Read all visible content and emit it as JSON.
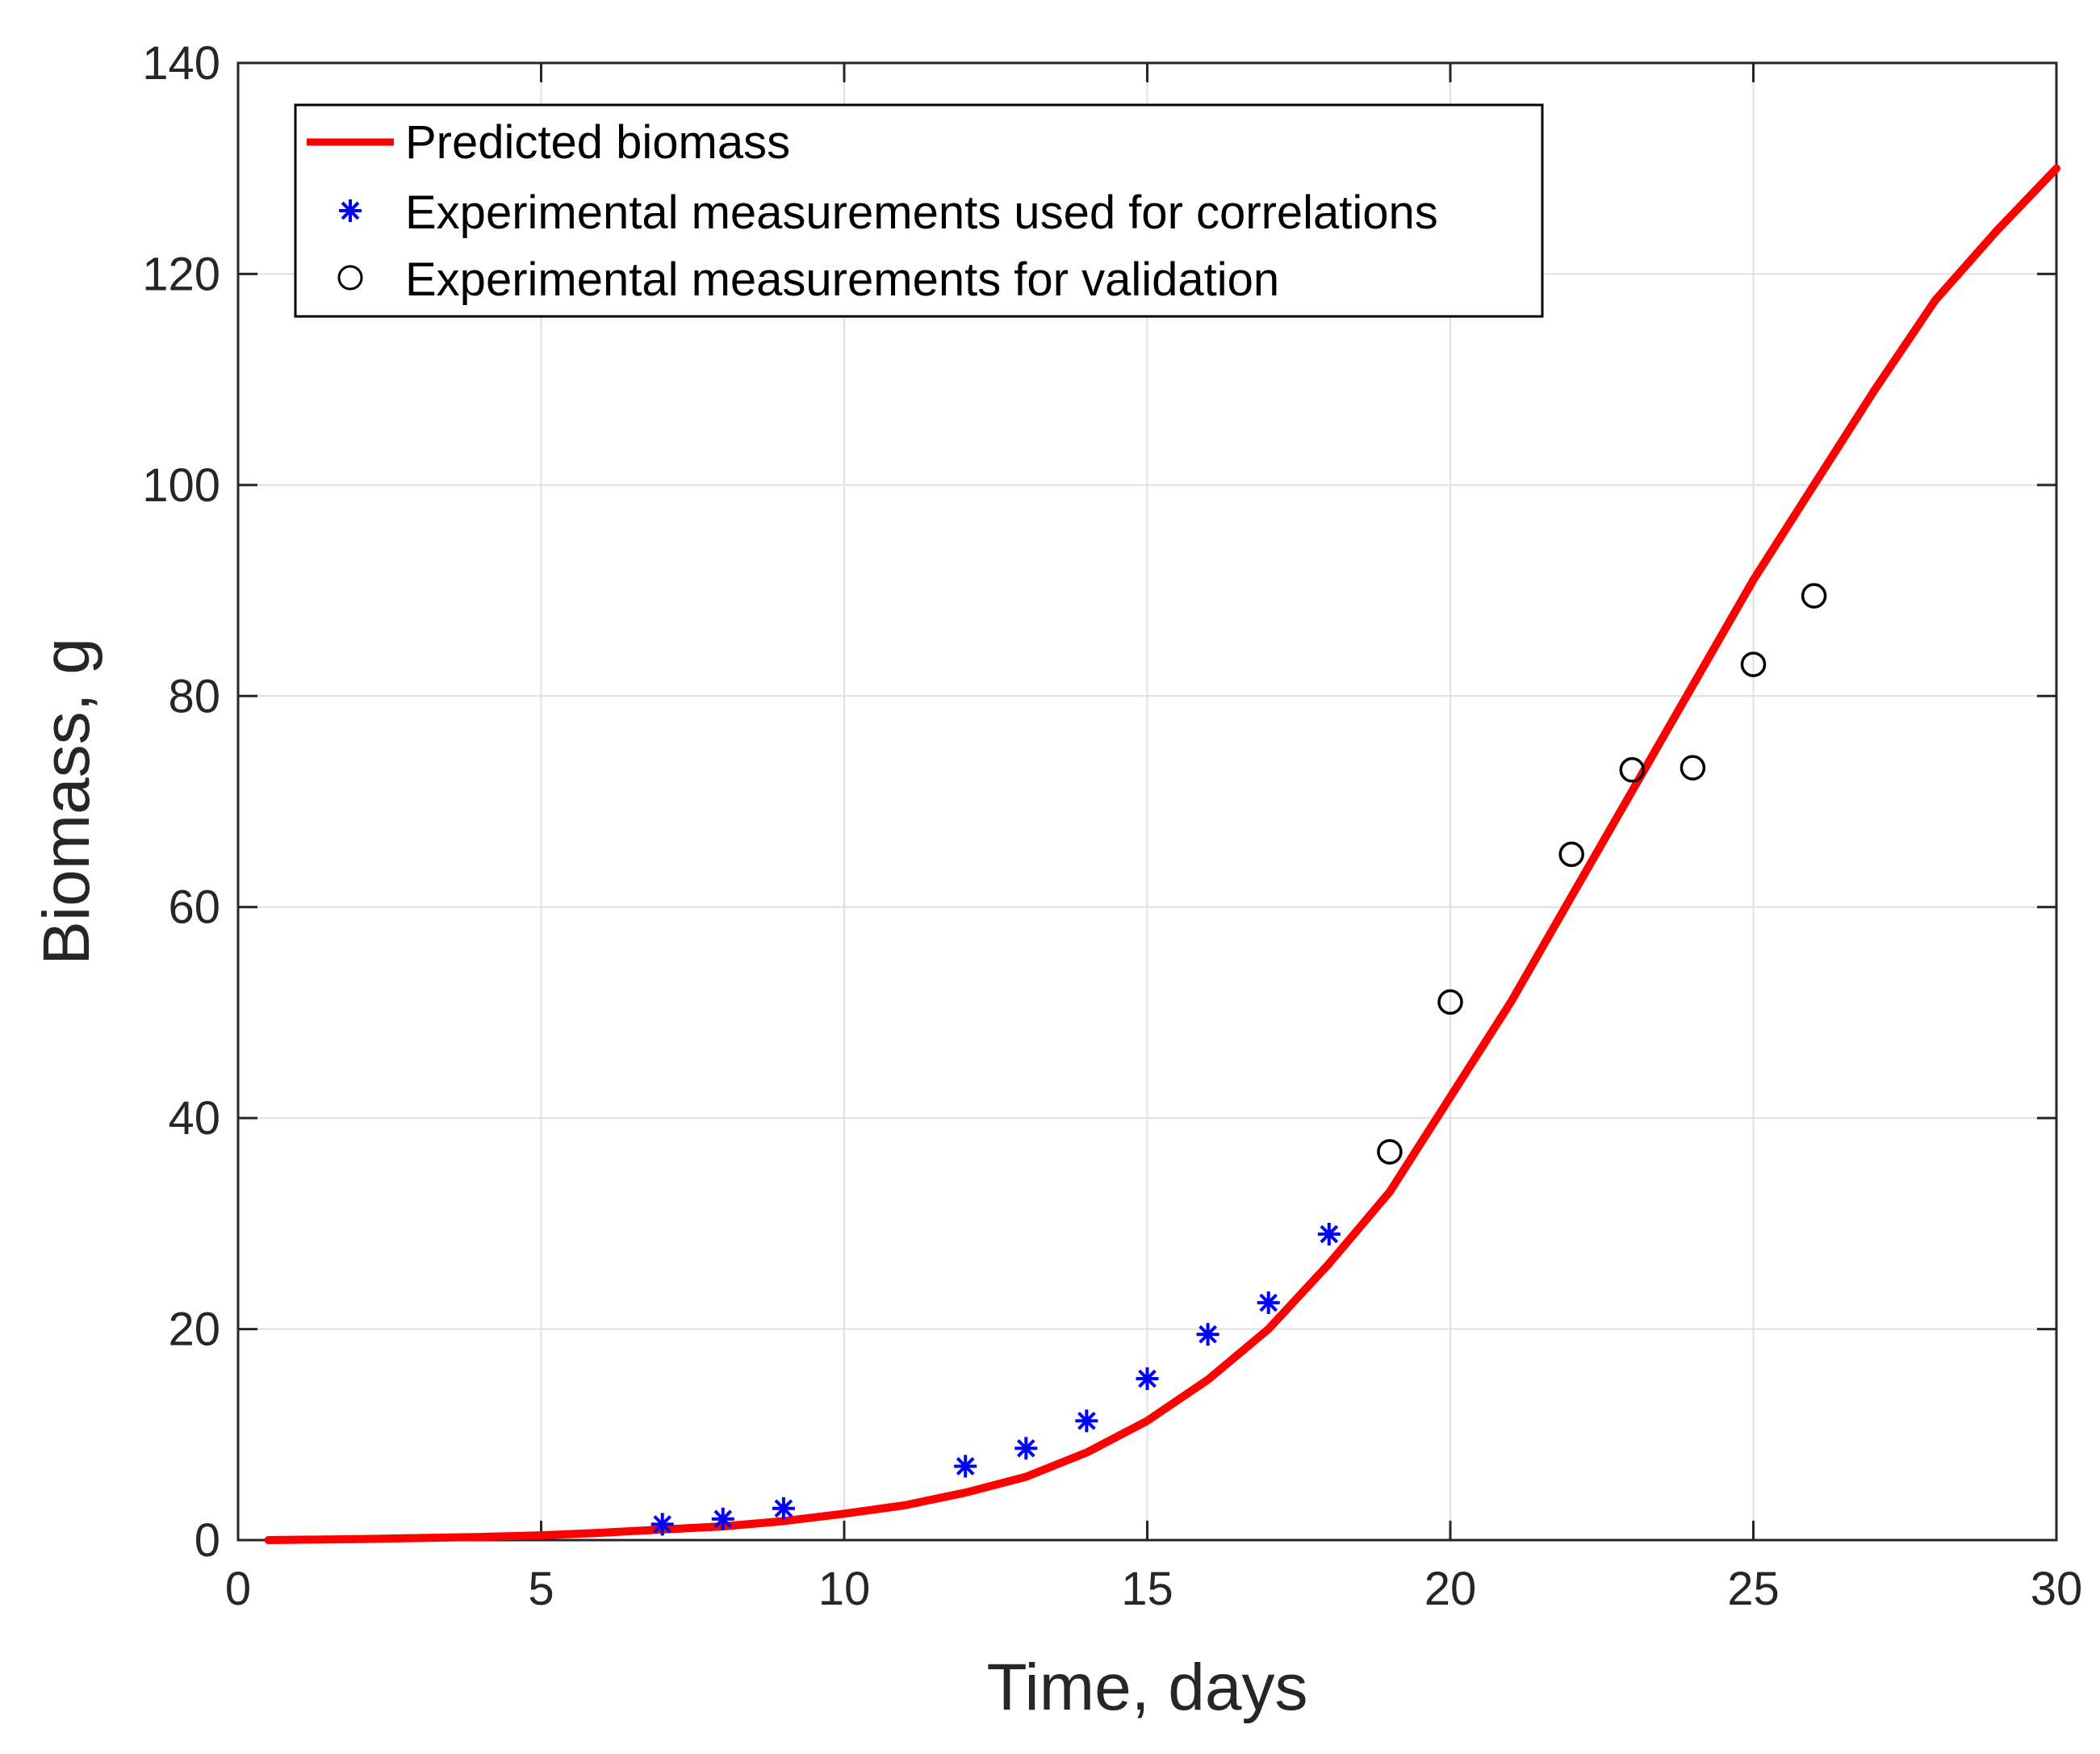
{
  "chart_data": {
    "type": "line",
    "title": "",
    "xlabel": "Time, days",
    "ylabel": "Biomass, g",
    "xlim": [
      0,
      30
    ],
    "ylim": [
      0,
      140
    ],
    "xticks": [
      "0",
      "5",
      "10",
      "15",
      "20",
      "25",
      "30"
    ],
    "yticks": [
      "0",
      "20",
      "40",
      "60",
      "80",
      "100",
      "120",
      "140"
    ],
    "grid": true,
    "legend_position": "top-left",
    "colors": {
      "predicted": "#ff0000",
      "correlation": "#0000ff",
      "validation": "#000000"
    },
    "series": [
      {
        "name": "Predicted biomass",
        "kind": "line",
        "x": [
          0.5,
          2,
          4,
          5,
          6,
          7,
          8,
          9,
          10,
          11,
          12,
          13,
          14,
          15,
          16,
          17,
          18,
          19,
          20,
          21,
          22,
          23,
          24,
          25,
          26,
          27,
          28,
          29,
          30
        ],
        "y": [
          0,
          0.1,
          0.3,
          0.45,
          0.7,
          1.0,
          1.3,
          1.8,
          2.5,
          3.3,
          4.5,
          6.0,
          8.3,
          11.3,
          15.2,
          20.0,
          26.2,
          33.0,
          42.0,
          51.0,
          61.0,
          71.0,
          81.0,
          91.0,
          100.0,
          109.0,
          117.5,
          124.0,
          130.0
        ]
      },
      {
        "name": "Experimental measurements used for correlations",
        "kind": "scatter",
        "marker": "asterisk",
        "x": [
          7,
          8,
          9,
          12,
          13,
          14,
          15,
          16,
          17,
          18
        ],
        "y": [
          1.5,
          2.0,
          3.0,
          7.0,
          8.7,
          11.3,
          15.3,
          19.5,
          22.5,
          29.0
        ]
      },
      {
        "name": "Experimental measurements for validation",
        "kind": "scatter",
        "marker": "circle",
        "x": [
          19,
          20,
          22,
          23,
          24,
          25,
          26
        ],
        "y": [
          36.8,
          51.0,
          65.0,
          73.0,
          73.2,
          83.0,
          89.5
        ]
      }
    ]
  }
}
